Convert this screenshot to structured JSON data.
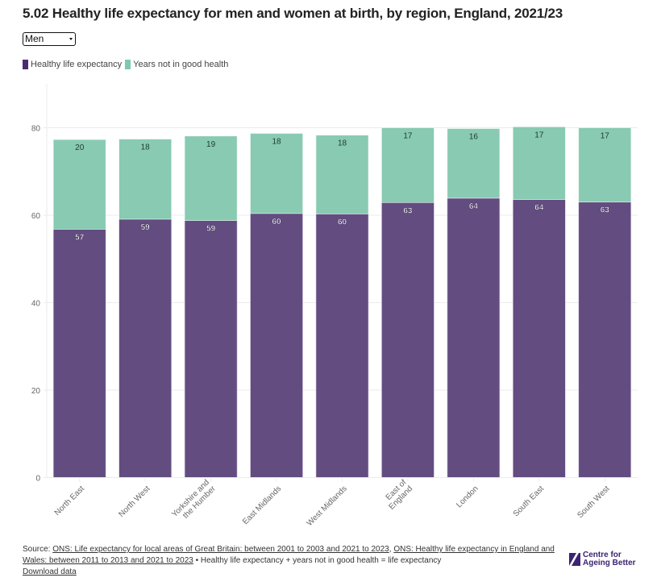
{
  "header": {
    "title": "5.02 Healthy life expectancy for men and women at birth, by region, England, 2021/23"
  },
  "selector": {
    "selected": "Men"
  },
  "colors": {
    "healthy": "#634c80",
    "not_good": "#88cab2",
    "legend_healthy": "#4a2c6e",
    "legend_not_good": "#7ec9ab",
    "grid": "#ebebeb",
    "axis_text": "#666666",
    "brand": "#3c2470"
  },
  "chart_data": {
    "type": "bar",
    "stacked": true,
    "title": "5.02 Healthy life expectancy for men and women at birth, by region, England, 2021/23",
    "xlabel": "",
    "ylabel": "",
    "ylim": [
      0,
      90
    ],
    "yticks": [
      0,
      20,
      40,
      60,
      80
    ],
    "grid": true,
    "legend_position": "top-left",
    "categories": [
      "North East",
      "North West",
      "Yorkshire and the Humber",
      "East Midlands",
      "West Midlands",
      "East of England",
      "London",
      "South East",
      "South West"
    ],
    "category_lines": [
      [
        "North East"
      ],
      [
        "North West"
      ],
      [
        "Yorkshire and",
        "the Humber"
      ],
      [
        "East Midlands"
      ],
      [
        "West Midlands"
      ],
      [
        "East of",
        "England"
      ],
      [
        "London"
      ],
      [
        "South East"
      ],
      [
        "South West"
      ]
    ],
    "series": [
      {
        "name": "Healthy life expectancy",
        "values": [
          56.8,
          59.1,
          58.8,
          60.4,
          60.3,
          62.9,
          63.9,
          63.6,
          63.0
        ],
        "labels": [
          "57",
          "59",
          "59",
          "60",
          "60",
          "63",
          "64",
          "64",
          "63"
        ]
      },
      {
        "name": "Years not in good health",
        "values": [
          20.5,
          18.3,
          19.3,
          18.3,
          18.0,
          17.1,
          15.9,
          16.6,
          17.0
        ],
        "labels": [
          "20",
          "18",
          "19",
          "18",
          "18",
          "17",
          "16",
          "17",
          "17"
        ]
      }
    ]
  },
  "footer": {
    "source_prefix": "Source: ",
    "link1": "ONS: Life expectancy for local areas of Great Britain: between 2001 to 2003 and 2021 to 2023",
    "separator": ", ",
    "link2": "ONS: Healthy life expectancy in England and Wales: between 2011 to 2013 and 2021 to 2023",
    "note": " • Healthy life expectancy + years not in good health = life expectancy",
    "download": "Download data"
  },
  "logo": {
    "line1": "Centre for",
    "line2": "Ageing Better"
  }
}
